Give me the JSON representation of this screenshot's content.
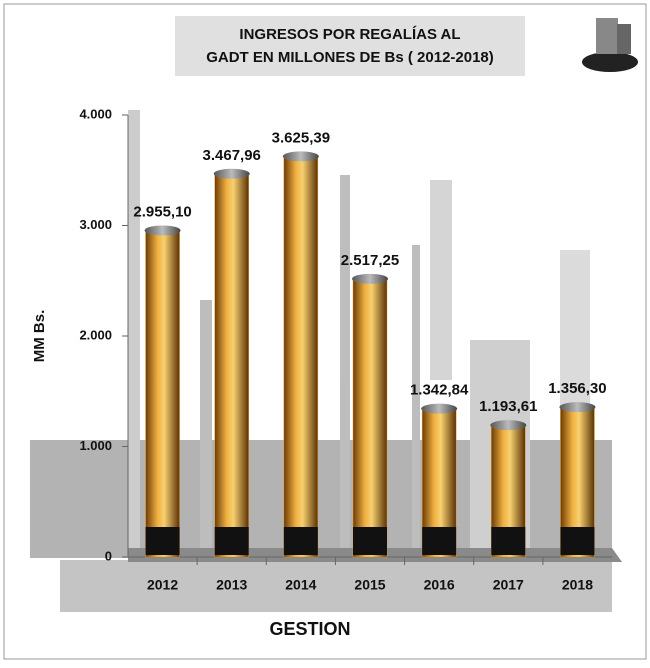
{
  "chart_data": {
    "type": "bar",
    "title": [
      "INGRESOS POR REGALÍAS AL",
      "GADT EN MILLONES DE Bs ( 2012-2018)"
    ],
    "y_label": "MM Bs.",
    "x_label": "GESTION",
    "categories": [
      "2012",
      "2013",
      "2014",
      "2015",
      "2016",
      "2017",
      "2018"
    ],
    "values": [
      2955.1,
      3467.96,
      3625.39,
      2517.25,
      1342.84,
      1193.61,
      1356.3
    ],
    "value_labels": [
      "2.955,10",
      "3.467,96",
      "3.625,39",
      "2.517,25",
      "1.342,84",
      "1.193,61",
      "1.356,30"
    ],
    "color": "#e8a030",
    "ylim": [
      0,
      4000
    ],
    "yticks": [
      0,
      {
        "value": 1000,
        "label": "1.000"
      },
      {
        "value": 2000,
        "label": "2.000"
      },
      {
        "value": 3000,
        "label": "3.000"
      },
      {
        "value": 4000,
        "label": "4.000"
      }
    ]
  }
}
